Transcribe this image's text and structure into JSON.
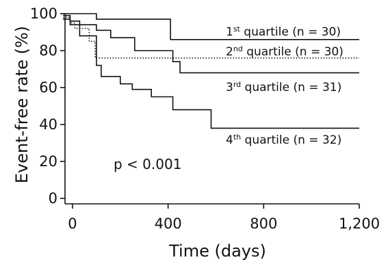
{
  "chart_data": {
    "type": "line",
    "subtype": "kaplan-meier step",
    "xlabel": "Time (days)",
    "ylabel": "Event-free rate (%)",
    "xlim": [
      -40,
      1200
    ],
    "ylim": [
      0,
      100
    ],
    "x_ticks": [
      {
        "value": 0,
        "label": "0"
      },
      {
        "value": 400,
        "label": "400"
      },
      {
        "value": 800,
        "label": "800"
      },
      {
        "value": 1200,
        "label": "1,200"
      }
    ],
    "y_ticks": [
      {
        "value": 0,
        "label": "0"
      },
      {
        "value": 20,
        "label": "20"
      },
      {
        "value": 40,
        "label": "40"
      },
      {
        "value": 60,
        "label": "60"
      },
      {
        "value": 80,
        "label": "80"
      },
      {
        "value": 100,
        "label": "100"
      }
    ],
    "annotation": "p < 0.001",
    "series": [
      {
        "name": "1st quartile (n = 30)",
        "label_parts": {
          "num": "1",
          "sup": "st",
          "rest": " quartile (n = 30)"
        },
        "style": "solid",
        "points": [
          [
            -40,
            100
          ],
          [
            100,
            100
          ],
          [
            100,
            97
          ],
          [
            410,
            97
          ],
          [
            410,
            86
          ],
          [
            1200,
            86
          ]
        ]
      },
      {
        "name": "2nd quartile (n = 30)",
        "label_parts": {
          "num": "2",
          "sup": "nd",
          "rest": " quartile (n = 30)"
        },
        "style": "dotted",
        "points": [
          [
            -40,
            98
          ],
          [
            -10,
            98
          ],
          [
            -10,
            95
          ],
          [
            10,
            95
          ],
          [
            10,
            92
          ],
          [
            70,
            92
          ],
          [
            70,
            85
          ],
          [
            95,
            85
          ],
          [
            95,
            76
          ],
          [
            1200,
            76
          ]
        ]
      },
      {
        "name": "3rd quartile (n = 31)",
        "label_parts": {
          "num": "3",
          "sup": "rd",
          "rest": " quartile (n = 31)"
        },
        "style": "solid",
        "points": [
          [
            -40,
            99
          ],
          [
            -10,
            99
          ],
          [
            -10,
            96
          ],
          [
            30,
            96
          ],
          [
            30,
            94
          ],
          [
            100,
            94
          ],
          [
            100,
            91
          ],
          [
            160,
            91
          ],
          [
            160,
            87
          ],
          [
            260,
            87
          ],
          [
            260,
            80
          ],
          [
            420,
            80
          ],
          [
            420,
            74
          ],
          [
            450,
            74
          ],
          [
            450,
            68
          ],
          [
            1200,
            68
          ]
        ]
      },
      {
        "name": "4th quartile (n = 32)",
        "label_parts": {
          "num": "4",
          "sup": "th",
          "rest": " quartile (n = 32)"
        },
        "style": "solid",
        "points": [
          [
            -40,
            97
          ],
          [
            -10,
            97
          ],
          [
            -10,
            94
          ],
          [
            30,
            94
          ],
          [
            30,
            88
          ],
          [
            100,
            88
          ],
          [
            100,
            72
          ],
          [
            120,
            72
          ],
          [
            120,
            66
          ],
          [
            200,
            66
          ],
          [
            200,
            62
          ],
          [
            250,
            62
          ],
          [
            250,
            59
          ],
          [
            330,
            59
          ],
          [
            330,
            55
          ],
          [
            420,
            55
          ],
          [
            420,
            48
          ],
          [
            580,
            48
          ],
          [
            580,
            38
          ],
          [
            1200,
            38
          ]
        ]
      }
    ]
  }
}
